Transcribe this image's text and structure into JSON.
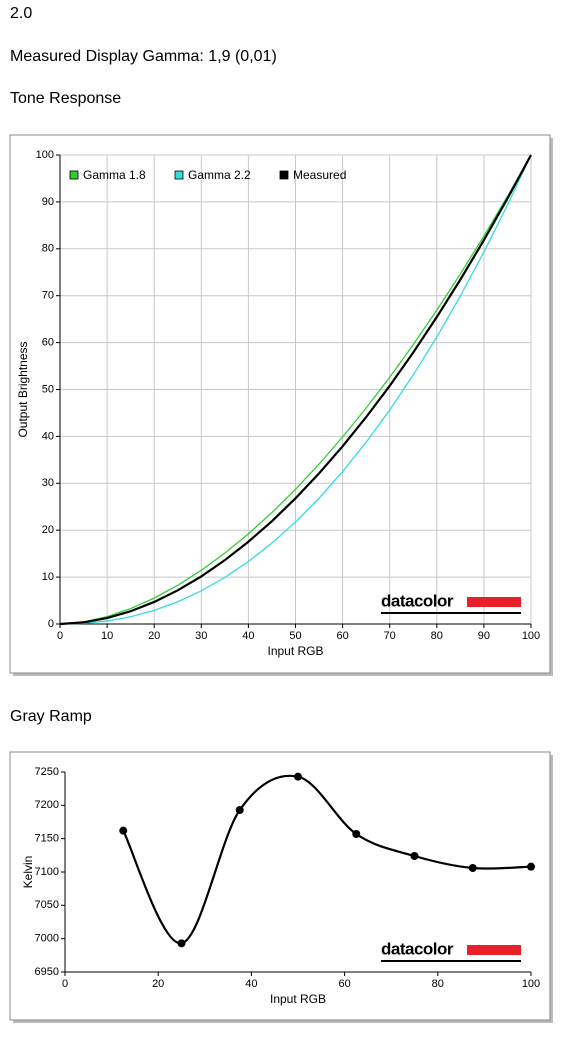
{
  "version": "2.0",
  "subtitle": "Measured Display Gamma: 1,9 (0,01)",
  "chart_data": [
    {
      "type": "line",
      "title": "Tone Response",
      "x_label": "Input RGB",
      "y_label": "Output Brightness",
      "logo": "datacolor",
      "x": [
        0,
        5,
        10,
        15,
        20,
        25,
        30,
        35,
        40,
        45,
        50,
        55,
        60,
        65,
        70,
        75,
        80,
        85,
        90,
        95,
        100
      ],
      "series": [
        {
          "name": "Gamma 1.8",
          "color": "#33cc33",
          "values": [
            0,
            0.46,
            1.58,
            3.29,
            5.52,
            8.25,
            11.45,
            15.11,
            19.22,
            23.76,
            28.72,
            34.09,
            39.87,
            46.05,
            52.62,
            59.58,
            66.92,
            74.64,
            82.72,
            91.18,
            100
          ]
        },
        {
          "name": "Gamma 2.2",
          "color": "#33dddd",
          "values": [
            0,
            0.14,
            0.63,
            1.54,
            2.9,
            4.74,
            7.08,
            9.93,
            13.32,
            17.26,
            21.76,
            26.84,
            32.5,
            38.76,
            45.63,
            53.11,
            61.21,
            69.94,
            79.31,
            89.33,
            100
          ]
        },
        {
          "name": "Measured",
          "color": "#000000",
          "values": [
            0,
            0.34,
            1.26,
            2.72,
            4.7,
            7.18,
            10.15,
            13.61,
            17.54,
            21.93,
            26.8,
            32.12,
            37.89,
            44.11,
            50.78,
            57.89,
            65.45,
            73.43,
            81.85,
            90.71,
            100
          ]
        }
      ],
      "xlim": [
        0,
        100
      ],
      "ylim": [
        0,
        100
      ],
      "xticks": [
        0,
        10,
        20,
        30,
        40,
        50,
        60,
        70,
        80,
        90,
        100
      ],
      "yticks": [
        0,
        10,
        20,
        30,
        40,
        50,
        60,
        70,
        80,
        90,
        100
      ],
      "grid": true,
      "legend": "upper left"
    },
    {
      "type": "line",
      "title": "Gray Ramp",
      "x_label": "Input RGB",
      "y_label": "Kelvin",
      "logo": "datacolor",
      "x": [
        12.5,
        25,
        37.5,
        50,
        62.5,
        75,
        87.5,
        100
      ],
      "values": [
        7162,
        6993,
        7193,
        7243,
        7157,
        7124,
        7106,
        7108
      ],
      "color": "#000000",
      "markers": true,
      "smooth": true,
      "xlim": [
        0,
        100
      ],
      "ylim": [
        6950,
        7250
      ],
      "xticks": [
        0,
        20,
        40,
        60,
        80,
        100
      ],
      "yticks": [
        6950,
        7000,
        7050,
        7100,
        7150,
        7200,
        7250
      ],
      "grid": false
    }
  ]
}
